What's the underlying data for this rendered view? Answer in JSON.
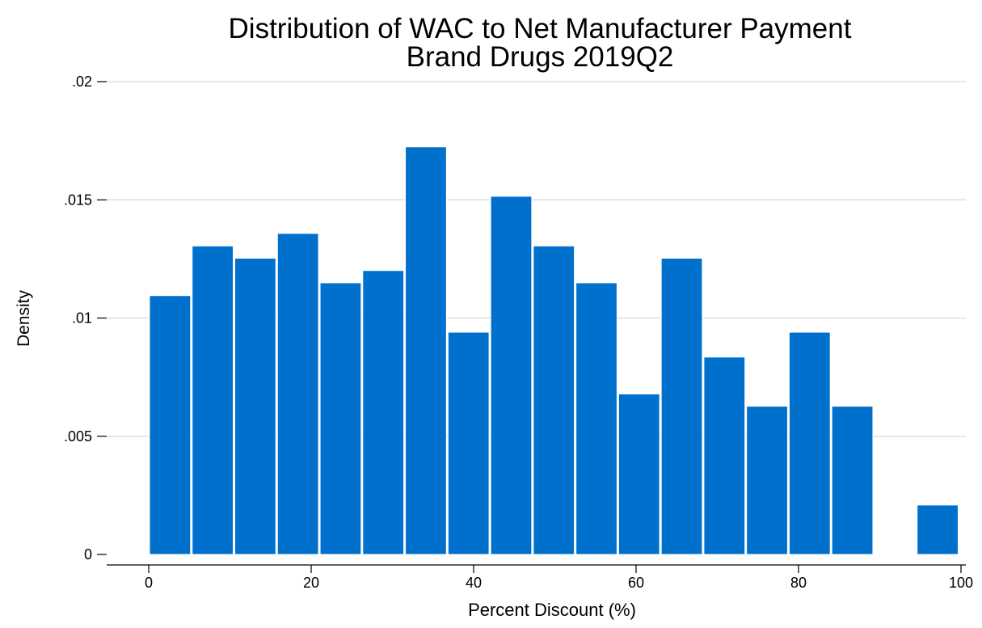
{
  "chart_data": {
    "type": "bar",
    "title": "Distribution of WAC to Net Manufacturer Payment",
    "subtitle": "Brand Drugs 2019Q2",
    "xlabel": "Percent Discount (%)",
    "ylabel": "Density",
    "xlim": [
      0,
      100
    ],
    "ylim": [
      0,
      0.02
    ],
    "bin_width": 5.25,
    "bins": [
      {
        "start": 0.0,
        "end": 5.25,
        "value": 0.01095
      },
      {
        "start": 5.25,
        "end": 10.5,
        "value": 0.01305
      },
      {
        "start": 10.5,
        "end": 15.75,
        "value": 0.01253
      },
      {
        "start": 15.75,
        "end": 21.0,
        "value": 0.01358
      },
      {
        "start": 21.0,
        "end": 26.25,
        "value": 0.01149
      },
      {
        "start": 26.25,
        "end": 31.5,
        "value": 0.01201
      },
      {
        "start": 31.5,
        "end": 36.75,
        "value": 0.01724
      },
      {
        "start": 36.75,
        "end": 42.0,
        "value": 0.0094
      },
      {
        "start": 42.0,
        "end": 47.25,
        "value": 0.01515
      },
      {
        "start": 47.25,
        "end": 52.5,
        "value": 0.01305
      },
      {
        "start": 52.5,
        "end": 57.75,
        "value": 0.01149
      },
      {
        "start": 57.75,
        "end": 63.0,
        "value": 0.00679
      },
      {
        "start": 63.0,
        "end": 68.25,
        "value": 0.01253
      },
      {
        "start": 68.25,
        "end": 73.5,
        "value": 0.00835
      },
      {
        "start": 73.5,
        "end": 78.75,
        "value": 0.00627
      },
      {
        "start": 78.75,
        "end": 84.0,
        "value": 0.0094
      },
      {
        "start": 84.0,
        "end": 89.25,
        "value": 0.00627
      },
      {
        "start": 89.25,
        "end": 94.5,
        "value": 0
      },
      {
        "start": 94.5,
        "end": 99.75,
        "value": 0.00209
      }
    ],
    "yticks": [
      {
        "value": 0,
        "label": "0"
      },
      {
        "value": 0.005,
        "label": ".005"
      },
      {
        "value": 0.01,
        "label": ".01"
      },
      {
        "value": 0.015,
        "label": ".015"
      },
      {
        "value": 0.02,
        "label": ".02"
      }
    ],
    "xticks": [
      {
        "value": 0,
        "label": "0"
      },
      {
        "value": 20,
        "label": "20"
      },
      {
        "value": 40,
        "label": "40"
      },
      {
        "value": 60,
        "label": "60"
      },
      {
        "value": 80,
        "label": "80"
      },
      {
        "value": 100,
        "label": "100"
      }
    ],
    "grid": true,
    "legend": "none",
    "colors": {
      "bar_fill": "#0070cd",
      "bar_edge": "#ffffff",
      "grid": "#dfdfdf",
      "axis": "#000000"
    }
  }
}
